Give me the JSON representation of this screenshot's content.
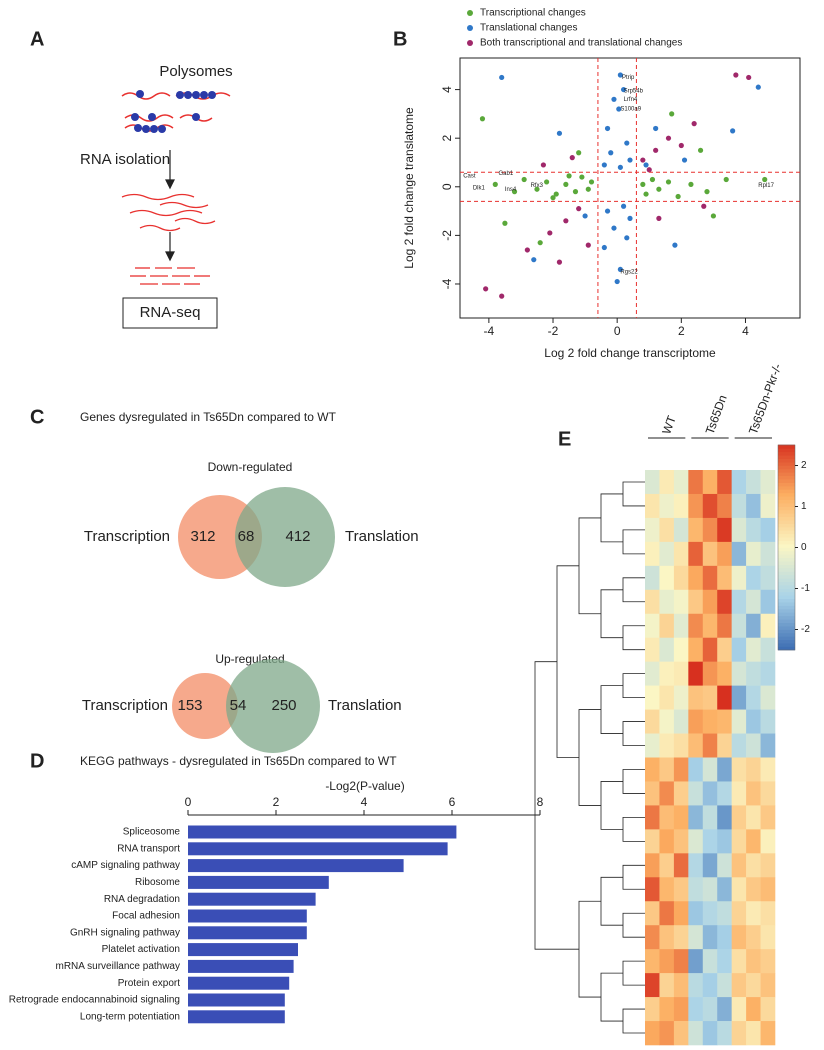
{
  "diagram": {
    "panel": "A",
    "top": "Polysomes",
    "step": "RNA isolation",
    "bottom": "RNA-seq"
  },
  "chart_data": [
    {
      "type": "scatter",
      "panel": "B",
      "xlabel": "Log 2 fold change transcriptome",
      "ylabel": "Log 2 fold change translatome",
      "xlim": [
        -4.9,
        5.7
      ],
      "ylim": [
        -5.4,
        5.3
      ],
      "xticks": [
        -4,
        -2,
        0,
        2,
        4
      ],
      "yticks": [
        -4,
        -2,
        0,
        2,
        4
      ],
      "cutoffs": [
        -0.6,
        0.6
      ],
      "cutoff_color": "#e8312f",
      "series": [
        {
          "name": "Transcriptional changes",
          "color": "#5aa83a",
          "x": [
            -3.8,
            -3.2,
            -2.9,
            -2.5,
            -2.2,
            -1.9,
            -1.6,
            -1.3,
            -1.1,
            -0.9,
            -0.8,
            -1.5,
            -2.0,
            0.8,
            0.9,
            1.1,
            1.3,
            1.6,
            1.9,
            2.3,
            2.8,
            3.4,
            4.6,
            -4.2,
            -3.5,
            1.7,
            2.6,
            -2.4,
            3.0,
            -1.2
          ],
          "values": [
            0.1,
            -0.2,
            0.3,
            -0.1,
            0.2,
            -0.3,
            0.1,
            -0.2,
            0.4,
            -0.1,
            0.2,
            0.45,
            -0.45,
            0.1,
            -0.3,
            0.3,
            -0.1,
            0.2,
            -0.4,
            0.1,
            -0.2,
            0.3,
            0.3,
            2.8,
            -1.5,
            3.0,
            1.5,
            -2.3,
            -1.2,
            1.4
          ]
        },
        {
          "name": "Translational changes",
          "color": "#2f78c8",
          "x": [
            0.1,
            0.2,
            -0.1,
            0.05,
            -0.3,
            0.3,
            -0.2,
            0.4,
            -0.4,
            0.1,
            0.2,
            -0.3,
            0.4,
            -0.1,
            0.3,
            -0.4,
            0.1,
            0.0,
            -3.6,
            -1.8,
            1.2,
            3.6,
            4.4,
            -2.6,
            1.8,
            -1.0,
            0.9,
            2.1
          ],
          "values": [
            4.6,
            4.0,
            3.6,
            3.2,
            2.4,
            1.8,
            1.4,
            1.1,
            0.9,
            0.8,
            -0.8,
            -1.0,
            -1.3,
            -1.7,
            -2.1,
            -2.5,
            -3.4,
            -3.9,
            4.5,
            2.2,
            2.4,
            2.3,
            4.1,
            -3.0,
            -2.4,
            -1.2,
            0.9,
            1.1
          ]
        },
        {
          "name": "Both transcriptional and translational changes",
          "color": "#a0286a",
          "x": [
            -4.1,
            -3.6,
            -2.8,
            -2.1,
            -1.6,
            -1.2,
            -0.9,
            -1.8,
            0.8,
            1.2,
            1.6,
            2.0,
            2.4,
            1.0,
            3.7,
            4.1,
            -1.4,
            1.3,
            -2.3,
            2.7
          ],
          "values": [
            -4.2,
            -4.5,
            -2.6,
            -1.9,
            -1.4,
            -0.9,
            -2.4,
            -3.1,
            1.1,
            1.5,
            2.0,
            1.7,
            2.6,
            0.7,
            4.6,
            4.5,
            1.2,
            -1.3,
            0.9,
            -0.8
          ]
        }
      ],
      "annotations": [
        {
          "text": "Ptrip",
          "x": 0.15,
          "y": 4.5
        },
        {
          "text": "Srp54b",
          "x": 0.2,
          "y": 3.95
        },
        {
          "text": "Lrfn4",
          "x": 0.2,
          "y": 3.6
        },
        {
          "text": "S100a9",
          "x": 0.1,
          "y": 3.2
        },
        {
          "text": "Rgs22",
          "x": 0.1,
          "y": -3.5
        },
        {
          "text": "Rpl17",
          "x": 4.4,
          "y": 0.05
        },
        {
          "text": "Cast",
          "x": -4.8,
          "y": 0.45
        },
        {
          "text": "Dlk1",
          "x": -4.5,
          "y": -0.05
        },
        {
          "text": "Gab1",
          "x": -3.7,
          "y": 0.55
        },
        {
          "text": "Ins4",
          "x": -3.5,
          "y": -0.1
        },
        {
          "text": "Rfx3",
          "x": -2.7,
          "y": 0.05
        }
      ]
    },
    {
      "type": "venn",
      "panel": "C",
      "title": "Genes dysregulated in Ts65Dn compared to WT",
      "colors": [
        "#f6a98c",
        "#7fa88a"
      ],
      "sets": [
        {
          "subtitle": "Down-regulated",
          "left_label": "Transcription",
          "right_label": "Translation",
          "values": [
            312,
            68,
            412
          ]
        },
        {
          "subtitle": "Up-regulated",
          "left_label": "Transcription",
          "right_label": "Translation",
          "values": [
            153,
            54,
            250
          ]
        }
      ]
    },
    {
      "type": "barh",
      "panel": "D",
      "title": "KEGG pathways - dysregulated in Ts65Dn compared to WT",
      "xlabel": "-Log2(P-value)",
      "xlim": [
        0,
        8
      ],
      "xticks": [
        0,
        2,
        4,
        6,
        8
      ],
      "color": "#3a4eb6",
      "categories": [
        "Spliceosome",
        "RNA transport",
        "cAMP signaling pathway",
        "Ribosome",
        "RNA degradation",
        "Focal adhesion",
        "GnRH signaling pathway",
        "Platelet activation",
        "mRNA surveillance pathway",
        "Protein export",
        "Retrograde endocannabinoid signaling",
        "Long-term potentiation"
      ],
      "values": [
        6.1,
        5.9,
        4.9,
        3.2,
        2.9,
        2.7,
        2.7,
        2.5,
        2.4,
        2.3,
        2.2,
        2.2
      ]
    },
    {
      "type": "heatmap",
      "panel": "E",
      "groups": [
        "WT",
        "Ts65Dn",
        "Ts65Dn-Pkr-/-"
      ],
      "zlim": [
        -2.5,
        2.5
      ],
      "colorbar_ticks": [
        -2,
        -1,
        0,
        1,
        2
      ],
      "colors": [
        "#3f6fb4",
        "#a9d3e8",
        "#fbf6c4",
        "#fcae61",
        "#d7301f"
      ],
      "values": [
        [
          -0.5,
          0.2,
          -0.3,
          1.8,
          1.2,
          2.1,
          -1.2,
          -0.8,
          -0.4
        ],
        [
          0.3,
          -0.2,
          0.1,
          1.5,
          2.2,
          1.7,
          -0.9,
          -1.5,
          -0.2
        ],
        [
          -0.2,
          0.4,
          -0.6,
          1.1,
          1.6,
          2.4,
          -0.5,
          -1.0,
          -1.3
        ],
        [
          0.1,
          -0.4,
          0.3,
          2.0,
          0.9,
          1.4,
          -1.6,
          -0.3,
          -0.7
        ],
        [
          -0.7,
          0.0,
          0.5,
          1.3,
          1.9,
          1.0,
          -0.2,
          -1.2,
          -0.9
        ],
        [
          0.4,
          -0.3,
          -0.1,
          0.8,
          1.4,
          2.3,
          -1.1,
          -0.6,
          -1.4
        ],
        [
          -0.1,
          0.6,
          -0.4,
          1.6,
          1.1,
          1.8,
          -0.8,
          -1.7,
          0.1
        ],
        [
          0.2,
          -0.5,
          0.0,
          1.2,
          2.0,
          0.7,
          -1.3,
          -0.4,
          -0.8
        ],
        [
          -0.4,
          0.1,
          0.2,
          2.6,
          1.5,
          1.2,
          -0.6,
          -0.9,
          -1.1
        ],
        [
          0.0,
          0.3,
          -0.2,
          0.9,
          0.8,
          2.5,
          -1.8,
          -1.1,
          -0.5
        ],
        [
          0.5,
          -0.1,
          -0.5,
          1.4,
          1.2,
          1.1,
          -0.4,
          -1.4,
          -1.0
        ],
        [
          -0.3,
          0.2,
          0.4,
          1.0,
          1.7,
          0.6,
          -1.0,
          -0.7,
          -1.6
        ],
        [
          1.2,
          0.8,
          1.5,
          -1.3,
          -0.6,
          -1.8,
          0.4,
          0.6,
          0.2
        ],
        [
          0.9,
          1.6,
          0.7,
          -0.8,
          -1.5,
          -1.1,
          0.2,
          0.9,
          0.5
        ],
        [
          1.8,
          1.0,
          1.2,
          -1.6,
          -0.9,
          -2.0,
          0.7,
          0.3,
          0.8
        ],
        [
          0.6,
          1.3,
          0.9,
          -0.5,
          -1.2,
          -1.4,
          0.5,
          1.1,
          0.1
        ],
        [
          1.4,
          0.7,
          1.9,
          -1.1,
          -1.8,
          -0.7,
          0.9,
          0.4,
          0.6
        ],
        [
          2.1,
          1.1,
          0.8,
          -0.9,
          -0.7,
          -1.6,
          0.3,
          0.8,
          1.0
        ],
        [
          0.8,
          1.8,
          1.3,
          -1.4,
          -1.1,
          -0.9,
          0.6,
          0.2,
          0.4
        ],
        [
          1.6,
          0.9,
          0.6,
          -0.6,
          -1.6,
          -1.3,
          1.0,
          0.7,
          0.3
        ],
        [
          1.1,
          1.4,
          1.7,
          -1.9,
          -0.8,
          -1.2,
          0.4,
          0.9,
          0.7
        ],
        [
          2.3,
          0.6,
          1.0,
          -1.0,
          -1.3,
          -0.8,
          0.8,
          0.5,
          0.9
        ],
        [
          0.7,
          1.2,
          1.4,
          -1.2,
          -1.0,
          -1.7,
          0.2,
          1.2,
          0.5
        ],
        [
          1.3,
          1.5,
          0.9,
          -0.7,
          -1.4,
          -1.0,
          0.6,
          0.3,
          1.1
        ]
      ]
    }
  ]
}
